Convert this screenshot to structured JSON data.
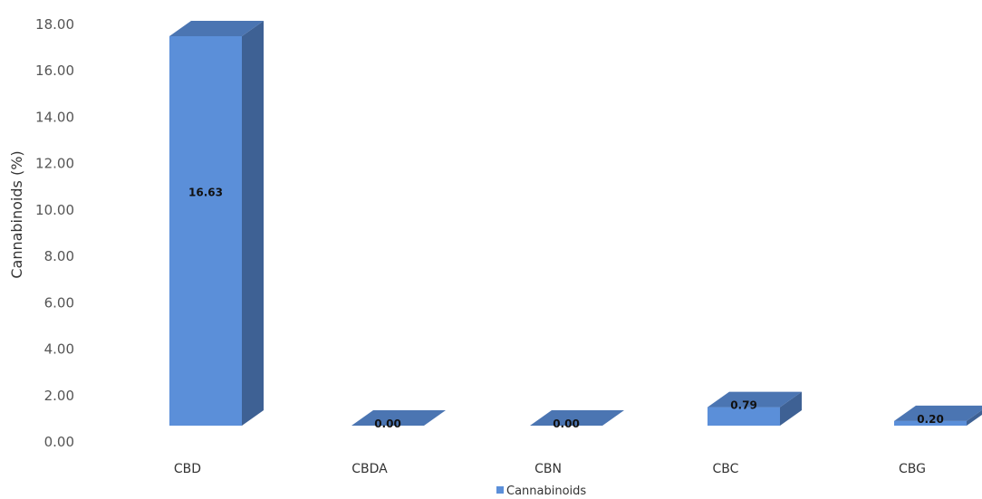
{
  "chart_data": {
    "type": "bar",
    "style": "3d-column",
    "categories": [
      "CBD",
      "CBDA",
      "CBN",
      "CBC",
      "CBG"
    ],
    "series": [
      {
        "name": "Cannabinoids",
        "values": [
          16.63,
          0.0,
          0.0,
          0.79,
          0.2
        ],
        "color": "#5b8fd9"
      }
    ],
    "data_labels": [
      "16.63",
      "0.00",
      "0.00",
      "0.79",
      "0.20"
    ],
    "ylabel": "Cannabinoids (%)",
    "xlabel": "",
    "ylim": [
      0,
      18
    ],
    "yticks": [
      "0.00",
      "2.00",
      "4.00",
      "6.00",
      "8.00",
      "10.00",
      "12.00",
      "14.00",
      "16.00",
      "18.00"
    ],
    "grid": false,
    "legend": {
      "position": "bottom",
      "entries": [
        "Cannabinoids"
      ]
    }
  }
}
